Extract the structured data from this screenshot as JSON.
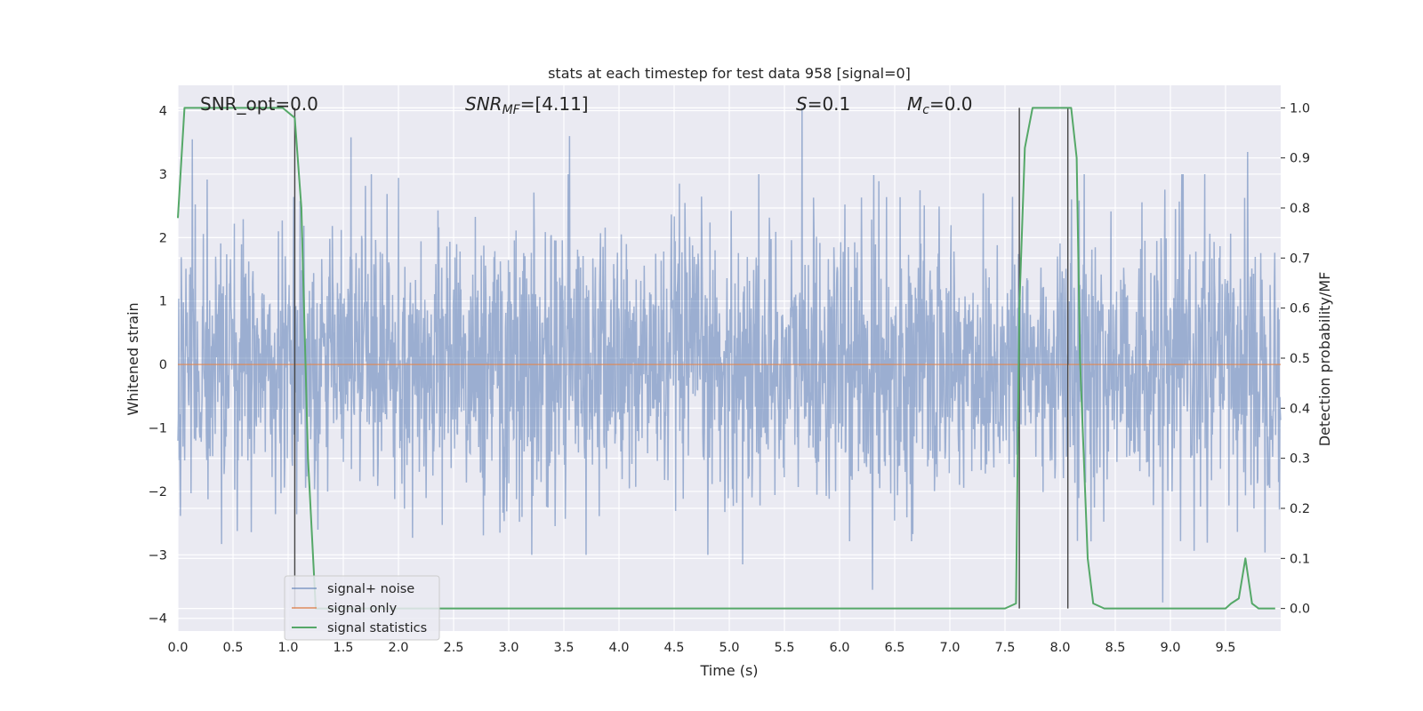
{
  "chart_data": {
    "type": "line",
    "title": "stats at each timestep for test data 958 [signal=0]",
    "xlabel": "Time (s)",
    "ylabel": "Whitened strain",
    "y2label": "Detection probability/MF",
    "xlim": [
      0,
      10
    ],
    "ylim": [
      -4.2,
      4.4
    ],
    "y2lim": [
      -0.045,
      1.045
    ],
    "x_ticks": [
      0.0,
      0.5,
      1.0,
      1.5,
      2.0,
      2.5,
      3.0,
      3.5,
      4.0,
      4.5,
      5.0,
      5.5,
      6.0,
      6.5,
      7.0,
      7.5,
      8.0,
      8.5,
      9.0,
      9.5
    ],
    "x_tick_labels": [
      "0.0",
      "0.5",
      "1.0",
      "1.5",
      "2.0",
      "2.5",
      "3.0",
      "3.5",
      "4.0",
      "4.5",
      "5.0",
      "5.5",
      "6.0",
      "6.5",
      "7.0",
      "7.5",
      "8.0",
      "8.5",
      "9.0",
      "9.5"
    ],
    "y_ticks": [
      4,
      3,
      2,
      1,
      0,
      -1,
      -2,
      -3,
      -4
    ],
    "y_tick_labels": [
      "4",
      "3",
      "2",
      "1",
      "0",
      "−1",
      "−2",
      "−3",
      "−4"
    ],
    "y2_ticks": [
      1.0,
      0.9,
      0.8,
      0.7,
      0.6,
      0.5,
      0.4,
      0.3,
      0.2,
      0.1,
      0.0
    ],
    "y2_tick_labels": [
      "1.0",
      "0.9",
      "0.8",
      "0.7",
      "0.6",
      "0.5",
      "0.4",
      "0.3",
      "0.2",
      "0.1",
      "0.0"
    ],
    "grid": true,
    "annotations": {
      "snr_opt": "SNR_opt=0.0",
      "snr_mf_base": "SNR",
      "snr_mf_sub": "MF",
      "snr_mf_value": "=[4.11]",
      "s_base": "S",
      "s_value": "=0.1",
      "mc_base": "M",
      "mc_sub": "c",
      "mc_value": "=0.0"
    },
    "series": [
      {
        "name": "signal+ noise",
        "color": "#4c72b0",
        "style": "noise",
        "peaks": [
          {
            "x": 0.13,
            "y": 3.55
          },
          {
            "x": 5.66,
            "y": 4.05
          },
          {
            "x": 3.55,
            "y": 3.6
          },
          {
            "x": 1.57,
            "y": 3.58
          },
          {
            "x": 9.7,
            "y": 3.35
          },
          {
            "x": 6.3,
            "y": -3.55
          },
          {
            "x": 8.93,
            "y": -3.75
          },
          {
            "x": 5.12,
            "y": -3.15
          }
        ]
      },
      {
        "name": "signal only",
        "color": "#dd8452",
        "style": "flat",
        "value": 0.0
      },
      {
        "name": "signal statistics",
        "color": "#55a868",
        "style": "probability",
        "x": [
          0.0,
          0.06,
          0.12,
          0.25,
          0.5,
          0.75,
          0.95,
          1.06,
          1.12,
          1.18,
          1.25,
          1.3,
          7.5,
          7.6,
          7.63,
          7.68,
          7.75,
          8.05,
          8.1,
          8.15,
          8.18,
          8.25,
          8.3,
          8.4,
          9.5,
          9.55,
          9.62,
          9.68,
          9.74,
          9.8,
          9.95
        ],
        "values": [
          0.78,
          1.0,
          1.0,
          1.0,
          1.0,
          1.0,
          1.0,
          0.98,
          0.8,
          0.3,
          0.0,
          0.0,
          0.0,
          0.01,
          0.6,
          0.92,
          1.0,
          1.0,
          1.0,
          0.9,
          0.5,
          0.1,
          0.01,
          0.0,
          0.0,
          0.01,
          0.02,
          0.1,
          0.01,
          0.0,
          0.0
        ]
      }
    ],
    "vertical_lines": [
      1.06,
      7.63,
      8.07
    ],
    "legend": {
      "placement": "lower-left",
      "entries": [
        "signal+ noise",
        "signal only",
        "signal statistics"
      ]
    }
  },
  "colors": {
    "plot_background": "#eaeaf2",
    "grid": "#ffffff",
    "text": "#262626",
    "vline": "#444444"
  }
}
